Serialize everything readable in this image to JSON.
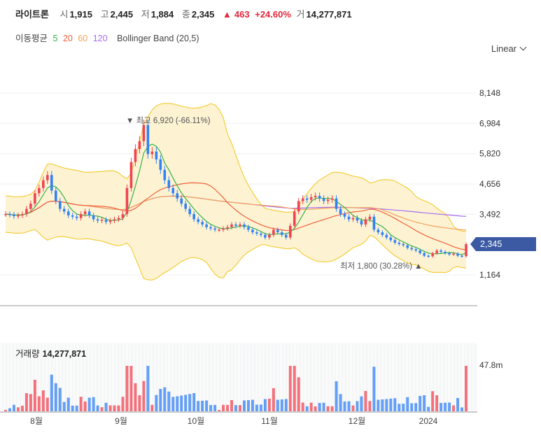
{
  "header": {
    "name": "라이트론",
    "open_label": "시",
    "open": "1,915",
    "high_label": "고",
    "high": "2,445",
    "low_label": "저",
    "low": "1,884",
    "close_label": "종",
    "close": "2,345",
    "change": "463",
    "change_pct": "+24.60%",
    "volume_label": "거",
    "volume": "14,277,871"
  },
  "indicators": {
    "label": "이동평균",
    "ma5": "5",
    "ma20": "20",
    "ma60": "60",
    "ma120": "120",
    "bb": "Bollinger Band (20,5)"
  },
  "scale_mode": "Linear",
  "volume_panel": {
    "label": "거래량",
    "value": "14,277,871",
    "axis_label": "47.8m"
  },
  "colors": {
    "up": "#f04452",
    "down": "#3182f6",
    "ma5": "#38b24a",
    "ma20": "#f0623c",
    "ma60": "#f5a15c",
    "ma120": "#a56df0",
    "band": "#f5cd3c"
  },
  "chart_data": {
    "type": "candlestick",
    "y_ticks": [
      "8,148",
      "6,984",
      "5,820",
      "4,656",
      "3,492",
      "1,164"
    ],
    "y_tick_values": [
      8148,
      6984,
      5820,
      4656,
      3492,
      1164
    ],
    "x_ticks": [
      "8월",
      "9월",
      "10월",
      "11월",
      "12월",
      "2024"
    ],
    "current_price": "2,345",
    "annotations": {
      "high_label": "최고",
      "high_value": "6,920",
      "high_pct": "(-66.11%)",
      "low_label": "최저",
      "low_value": "1,800",
      "low_pct": "(30.28%)"
    },
    "close_series": [
      3500,
      3480,
      3420,
      3450,
      3500,
      3700,
      3900,
      4300,
      4500,
      4800,
      5000,
      4400,
      4000,
      3700,
      3600,
      3450,
      3400,
      3350,
      3500,
      3600,
      3450,
      3300,
      3250,
      3280,
      3200,
      3250,
      3300,
      3350,
      3500,
      4500,
      5500,
      6000,
      6300,
      6920,
      5800,
      5900,
      5600,
      5200,
      4800,
      4500,
      4300,
      4100,
      3900,
      3700,
      3500,
      3300,
      3200,
      3100,
      3000,
      2950,
      2900,
      2900,
      2950,
      3000,
      3100,
      3050,
      3100,
      3000,
      2900,
      2800,
      2750,
      2700,
      2600,
      2700,
      2900,
      2800,
      2700,
      2600,
      3050,
      3600,
      4000,
      4100,
      4050,
      4150,
      4200,
      4100,
      4000,
      4050,
      4100,
      3700,
      3500,
      3400,
      3300,
      3350,
      3250,
      3100,
      3300,
      3400,
      2900,
      2800,
      2700,
      2600,
      2500,
      2400,
      2350,
      2300,
      2200,
      2150,
      2100,
      2000,
      1900,
      1880,
      2000,
      2100,
      2050,
      2000,
      1950,
      1980,
      1900,
      1884,
      2345
    ]
  }
}
